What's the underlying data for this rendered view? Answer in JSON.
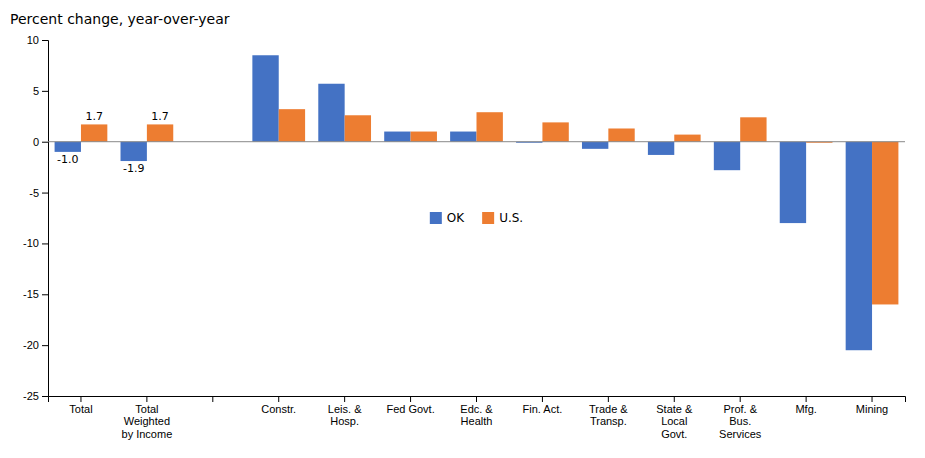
{
  "chart_data": {
    "type": "bar",
    "ylabel": "Percent change, year-over-year",
    "categories": [
      "Total",
      "Total\nWeighted\nby Income",
      null,
      "Constr.",
      "Leis. &\nHosp.",
      "Fed Govt.",
      "Edc. &\nHealth",
      "Fin. Act.",
      "Trade &\nTransp.",
      "State &\nLocal\nGovt.",
      "Prof. &\nBus.\nServices",
      "Mfg.",
      "Mining"
    ],
    "series": [
      {
        "name": "OK",
        "color": "#4472C4",
        "values": [
          -1.0,
          -1.9,
          null,
          8.5,
          5.7,
          1.0,
          1.0,
          -0.1,
          -0.7,
          -1.3,
          -2.8,
          -8.0,
          -20.5
        ]
      },
      {
        "name": "U.S.",
        "color": "#ED7D31",
        "values": [
          1.7,
          1.7,
          null,
          3.2,
          2.6,
          1.0,
          2.9,
          1.9,
          1.3,
          0.7,
          2.4,
          -0.1,
          -16.0
        ]
      }
    ],
    "annotations": [
      {
        "text": "-1.0",
        "category": "Total",
        "series": "OK"
      },
      {
        "text": "1.7",
        "category": "Total",
        "series": "U.S."
      },
      {
        "text": "-1.9",
        "category": "Total\nWeighted\nby Income",
        "series": "OK"
      },
      {
        "text": "1.7",
        "category": "Total\nWeighted\nby Income",
        "series": "U.S."
      }
    ],
    "ylim": [
      -25,
      10
    ],
    "yticks": [
      -25,
      -20,
      -15,
      -10,
      -5,
      0,
      5,
      10
    ],
    "grid": false,
    "legend": "center"
  }
}
